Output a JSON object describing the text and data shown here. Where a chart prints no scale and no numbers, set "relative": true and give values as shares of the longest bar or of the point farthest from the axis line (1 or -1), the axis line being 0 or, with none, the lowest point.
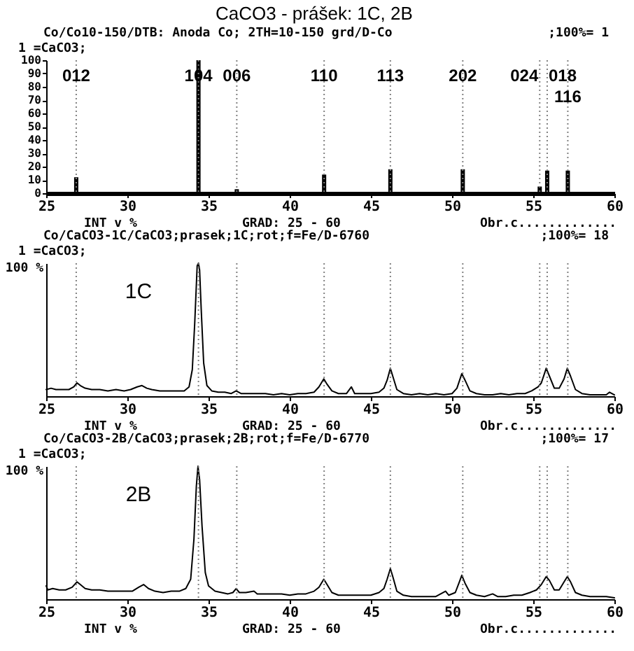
{
  "chart_data": [
    {
      "type": "bar",
      "title": "CaCO3 - prášek: 1C, 2B",
      "x": [
        26.85,
        34.38,
        36.74,
        42.12,
        46.2,
        50.66,
        55.4,
        55.86,
        57.13
      ],
      "values": [
        12,
        100,
        3,
        14,
        18,
        18,
        5,
        17,
        17
      ],
      "color": "#000000",
      "xlim": [
        25,
        60
      ],
      "xticks": [
        25,
        30,
        35,
        40,
        45,
        50,
        55,
        60
      ],
      "ylim": [
        0,
        100
      ],
      "yticks": [
        0,
        10,
        20,
        30,
        40,
        50,
        60,
        70,
        80,
        90,
        100
      ],
      "ref_lines": [
        {
          "axis": "x",
          "value": 26.85,
          "color": "#808080",
          "line_style": "dotted"
        },
        {
          "axis": "x",
          "value": 34.38,
          "color": "#808080",
          "line_style": "dotted"
        },
        {
          "axis": "x",
          "value": 36.74,
          "color": "#808080",
          "line_style": "dotted"
        },
        {
          "axis": "x",
          "value": 42.12,
          "color": "#808080",
          "line_style": "dotted"
        },
        {
          "axis": "x",
          "value": 46.2,
          "color": "#808080",
          "line_style": "dotted"
        },
        {
          "axis": "x",
          "value": 50.66,
          "color": "#808080",
          "line_style": "dotted"
        },
        {
          "axis": "x",
          "value": 55.4,
          "color": "#808080",
          "line_style": "dotted"
        },
        {
          "axis": "x",
          "value": 55.86,
          "color": "#808080",
          "line_style": "dotted"
        },
        {
          "axis": "x",
          "value": 57.13,
          "color": "#808080",
          "line_style": "dotted"
        }
      ],
      "annotations": [
        "Co/Co10-150/DTB: Anoda Co; 2TH=10-150 grd/D-Co",
        ";100%= 1",
        "1 =CaCO3;",
        "INT v %",
        "GRAD:  25  -  60",
        "Obr.c.............",
        {
          "text": "012",
          "x": 26.85
        },
        {
          "text": "104",
          "x": 34.38
        },
        {
          "text": "006",
          "x": 36.74
        },
        {
          "text": "110",
          "x": 42.12
        },
        {
          "text": "113",
          "x": 46.2
        },
        {
          "text": "202",
          "x": 50.66
        },
        {
          "text": "024",
          "x": 55.4
        },
        {
          "text": "018",
          "x": 55.86
        },
        {
          "text": "116",
          "x": 57.13
        }
      ]
    },
    {
      "type": "line",
      "relative": true,
      "x": [
        25.0,
        25.3,
        25.6,
        26.0,
        26.4,
        26.7,
        26.9,
        27.1,
        27.4,
        27.8,
        28.3,
        28.8,
        29.3,
        29.8,
        30.2,
        30.6,
        30.9,
        31.2,
        31.5,
        32.0,
        32.5,
        33.0,
        33.5,
        33.8,
        34.0,
        34.15,
        34.3,
        34.38,
        34.45,
        34.55,
        34.7,
        34.9,
        35.2,
        35.6,
        36.0,
        36.4,
        36.7,
        37.0,
        37.5,
        38.0,
        38.5,
        39.0,
        39.5,
        40.0,
        40.5,
        41.0,
        41.5,
        41.8,
        42.1,
        42.3,
        42.6,
        43.0,
        43.5,
        43.8,
        44.0,
        44.5,
        45.0,
        45.5,
        45.8,
        46.0,
        46.2,
        46.35,
        46.6,
        47.0,
        47.5,
        48.0,
        48.5,
        49.0,
        49.5,
        50.0,
        50.3,
        50.6,
        50.8,
        51.1,
        51.5,
        52.0,
        52.5,
        53.0,
        53.5,
        54.0,
        54.5,
        54.9,
        55.3,
        55.5,
        55.8,
        56.0,
        56.3,
        56.6,
        56.9,
        57.1,
        57.3,
        57.6,
        58.0,
        58.5,
        59.0,
        59.5,
        59.7,
        60.0
      ],
      "series": [
        {
          "name": "1C",
          "color": "#000000",
          "values": [
            0.05,
            0.06,
            0.05,
            0.05,
            0.05,
            0.07,
            0.1,
            0.08,
            0.06,
            0.05,
            0.05,
            0.04,
            0.05,
            0.04,
            0.05,
            0.07,
            0.08,
            0.06,
            0.05,
            0.04,
            0.04,
            0.04,
            0.04,
            0.07,
            0.2,
            0.55,
            0.98,
            1.0,
            0.95,
            0.65,
            0.25,
            0.08,
            0.04,
            0.03,
            0.03,
            0.02,
            0.04,
            0.02,
            0.02,
            0.02,
            0.02,
            0.01,
            0.02,
            0.01,
            0.02,
            0.02,
            0.03,
            0.07,
            0.13,
            0.09,
            0.04,
            0.02,
            0.02,
            0.07,
            0.02,
            0.02,
            0.02,
            0.03,
            0.06,
            0.12,
            0.21,
            0.15,
            0.05,
            0.02,
            0.01,
            0.02,
            0.01,
            0.02,
            0.01,
            0.02,
            0.06,
            0.17,
            0.12,
            0.04,
            0.02,
            0.01,
            0.01,
            0.02,
            0.01,
            0.02,
            0.02,
            0.04,
            0.07,
            0.1,
            0.21,
            0.15,
            0.06,
            0.06,
            0.13,
            0.21,
            0.15,
            0.05,
            0.02,
            0.01,
            0.01,
            0.01,
            0.03,
            0.01
          ]
        }
      ],
      "xlim": [
        25,
        60
      ],
      "xticks": [
        25,
        30,
        35,
        40,
        45,
        50,
        55,
        60
      ],
      "ref_lines": [
        {
          "axis": "x",
          "value": 26.85,
          "color": "#808080",
          "line_style": "dotted"
        },
        {
          "axis": "x",
          "value": 34.38,
          "color": "#808080",
          "line_style": "dotted"
        },
        {
          "axis": "x",
          "value": 36.74,
          "color": "#808080",
          "line_style": "dotted"
        },
        {
          "axis": "x",
          "value": 42.12,
          "color": "#808080",
          "line_style": "dotted"
        },
        {
          "axis": "x",
          "value": 46.2,
          "color": "#808080",
          "line_style": "dotted"
        },
        {
          "axis": "x",
          "value": 50.66,
          "color": "#808080",
          "line_style": "dotted"
        },
        {
          "axis": "x",
          "value": 55.4,
          "color": "#808080",
          "line_style": "dotted"
        },
        {
          "axis": "x",
          "value": 55.86,
          "color": "#808080",
          "line_style": "dotted"
        },
        {
          "axis": "x",
          "value": 57.13,
          "color": "#808080",
          "line_style": "dotted"
        }
      ],
      "annotations": [
        "Co/CaCO3-1C/CaCO3;prasek;1C;rot;f=Fe/D-6760",
        ";100%= 18",
        "1 =CaCO3;",
        "INT v %",
        "GRAD:  25  -  60",
        "Obr.c.............",
        "100 %"
      ]
    },
    {
      "type": "line",
      "relative": true,
      "x": [
        25.0,
        25.1,
        25.4,
        25.8,
        26.2,
        26.6,
        26.9,
        27.1,
        27.4,
        27.8,
        28.3,
        28.8,
        29.3,
        29.8,
        30.3,
        30.7,
        31.0,
        31.3,
        31.7,
        32.2,
        32.7,
        33.2,
        33.6,
        33.9,
        34.1,
        34.25,
        34.35,
        34.45,
        34.6,
        34.8,
        35.0,
        35.4,
        35.8,
        36.2,
        36.5,
        36.7,
        36.9,
        37.3,
        37.8,
        38.0,
        38.5,
        39.0,
        39.5,
        40.0,
        40.5,
        41.0,
        41.5,
        41.8,
        42.1,
        42.3,
        42.6,
        43.0,
        43.5,
        44.0,
        44.5,
        45.0,
        45.5,
        45.8,
        46.0,
        46.2,
        46.35,
        46.6,
        47.0,
        47.5,
        48.0,
        48.5,
        49.0,
        49.6,
        49.8,
        50.2,
        50.45,
        50.6,
        50.8,
        51.1,
        51.5,
        52.0,
        52.5,
        52.8,
        53.3,
        53.8,
        54.3,
        54.8,
        55.2,
        55.5,
        55.8,
        56.0,
        56.3,
        56.6,
        56.9,
        57.1,
        57.3,
        57.6,
        58.0,
        58.5,
        59.0,
        59.5,
        60.0
      ],
      "series": [
        {
          "name": "2B",
          "color": "#000000",
          "values": [
            0.1,
            0.07,
            0.08,
            0.07,
            0.07,
            0.09,
            0.13,
            0.11,
            0.08,
            0.07,
            0.07,
            0.06,
            0.06,
            0.06,
            0.06,
            0.09,
            0.11,
            0.08,
            0.06,
            0.05,
            0.06,
            0.06,
            0.08,
            0.15,
            0.45,
            0.85,
            1.0,
            0.9,
            0.55,
            0.2,
            0.1,
            0.06,
            0.05,
            0.04,
            0.05,
            0.08,
            0.05,
            0.05,
            0.06,
            0.04,
            0.04,
            0.04,
            0.04,
            0.03,
            0.04,
            0.04,
            0.06,
            0.09,
            0.15,
            0.11,
            0.05,
            0.03,
            0.03,
            0.03,
            0.03,
            0.03,
            0.05,
            0.08,
            0.15,
            0.23,
            0.17,
            0.06,
            0.03,
            0.02,
            0.02,
            0.02,
            0.02,
            0.06,
            0.03,
            0.05,
            0.13,
            0.18,
            0.12,
            0.05,
            0.03,
            0.02,
            0.04,
            0.02,
            0.02,
            0.03,
            0.03,
            0.05,
            0.07,
            0.11,
            0.17,
            0.14,
            0.07,
            0.07,
            0.13,
            0.17,
            0.13,
            0.05,
            0.03,
            0.02,
            0.02,
            0.02,
            0.01
          ]
        }
      ],
      "xlim": [
        25,
        60
      ],
      "xticks": [
        25,
        30,
        35,
        40,
        45,
        50,
        55,
        60
      ],
      "ref_lines": [
        {
          "axis": "x",
          "value": 26.85,
          "color": "#808080",
          "line_style": "dotted"
        },
        {
          "axis": "x",
          "value": 34.38,
          "color": "#808080",
          "line_style": "dotted"
        },
        {
          "axis": "x",
          "value": 36.74,
          "color": "#808080",
          "line_style": "dotted"
        },
        {
          "axis": "x",
          "value": 42.12,
          "color": "#808080",
          "line_style": "dotted"
        },
        {
          "axis": "x",
          "value": 46.2,
          "color": "#808080",
          "line_style": "dotted"
        },
        {
          "axis": "x",
          "value": 50.66,
          "color": "#808080",
          "line_style": "dotted"
        },
        {
          "axis": "x",
          "value": 55.4,
          "color": "#808080",
          "line_style": "dotted"
        },
        {
          "axis": "x",
          "value": 55.86,
          "color": "#808080",
          "line_style": "dotted"
        },
        {
          "axis": "x",
          "value": 57.13,
          "color": "#808080",
          "line_style": "dotted"
        }
      ],
      "annotations": [
        "Co/CaCO3-2B/CaCO3;prasek;2B;rot;f=Fe/D-6770",
        ";100%= 17",
        "1 =CaCO3;",
        "INT v %",
        "GRAD:  25  -  60",
        "Obr.c.............",
        "100 %"
      ]
    }
  ]
}
